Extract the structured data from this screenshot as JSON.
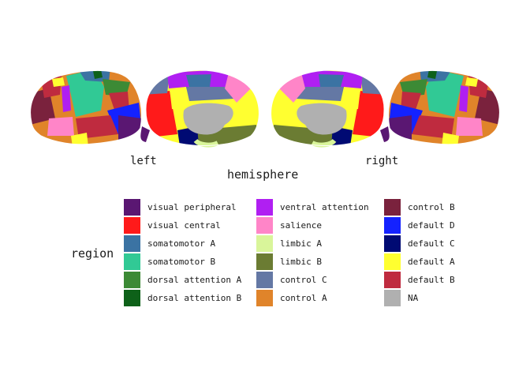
{
  "figure": {
    "hemispheres": [
      {
        "key": "left",
        "label": "left"
      },
      {
        "key": "right",
        "label": "right"
      }
    ],
    "axis_title": "hemisphere",
    "legend_title": "region"
  },
  "legend": {
    "columns": [
      [
        {
          "label": "visual peripheral",
          "color": "#5a1772"
        },
        {
          "label": "visual central",
          "color": "#ff1a1a"
        },
        {
          "label": "somatomotor A",
          "color": "#3b73a3"
        },
        {
          "label": "somatomotor B",
          "color": "#31c995"
        },
        {
          "label": "dorsal attention A",
          "color": "#3c8a35"
        },
        {
          "label": "dorsal attention B",
          "color": "#0e6119"
        }
      ],
      [
        {
          "label": "ventral attention",
          "color": "#b01ff2"
        },
        {
          "label": "salience",
          "color": "#ff85c8"
        },
        {
          "label": "limbic A",
          "color": "#d9f59a"
        },
        {
          "label": "limbic B",
          "color": "#6b7c33"
        },
        {
          "label": "control C",
          "color": "#6478a4"
        },
        {
          "label": "control A",
          "color": "#e0842a"
        }
      ],
      [
        {
          "label": "control B",
          "color": "#7a223d"
        },
        {
          "label": "default D",
          "color": "#1422ff"
        },
        {
          "label": "default C",
          "color": "#000a73"
        },
        {
          "label": "default A",
          "color": "#ffff30"
        },
        {
          "label": "default B",
          "color": "#bf2b3f"
        },
        {
          "label": "NA",
          "color": "#b0b0b0"
        }
      ]
    ]
  }
}
